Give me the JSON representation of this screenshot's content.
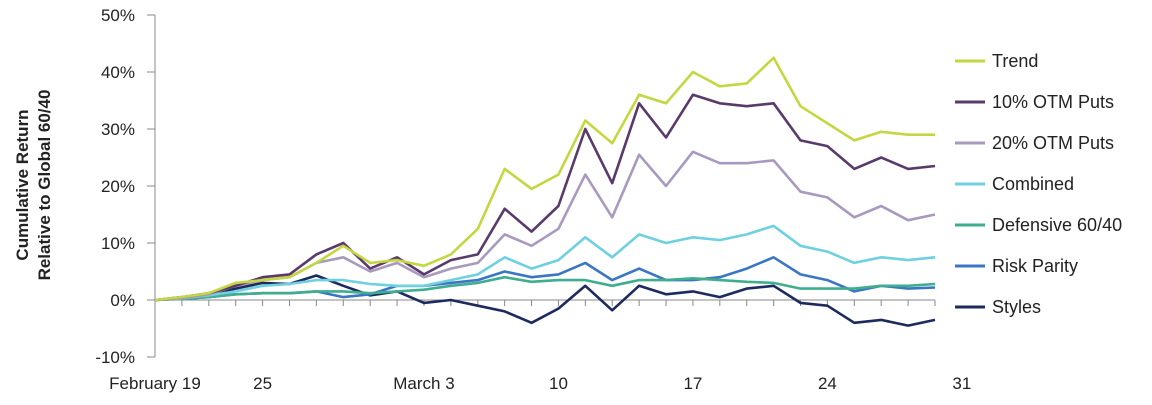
{
  "chart_data": {
    "type": "line",
    "ylabel_lines": [
      "Cumulative Return",
      "Relative to Global 60/40"
    ],
    "ylim": [
      -10,
      50
    ],
    "yticks": [
      -10,
      0,
      10,
      20,
      30,
      40,
      50
    ],
    "ytick_labels": [
      "-10%",
      "0%",
      "10%",
      "20%",
      "30%",
      "40%",
      "50%"
    ],
    "xticks": [
      {
        "index": 0,
        "label": "February 19"
      },
      {
        "index": 4,
        "label": "25"
      },
      {
        "index": 10,
        "label": "March 3"
      },
      {
        "index": 15,
        "label": "10"
      },
      {
        "index": 20,
        "label": "17"
      },
      {
        "index": 25,
        "label": "24"
      },
      {
        "index": 30,
        "label": "31"
      }
    ],
    "grid": false,
    "legend_position": "right",
    "series": [
      {
        "name": "Trend",
        "color": "#c5d641",
        "values": [
          0,
          0.5,
          1.2,
          3,
          3.5,
          4,
          6.5,
          9.5,
          6.5,
          7,
          6,
          8,
          12.5,
          23,
          19.5,
          22,
          31.5,
          27.5,
          36,
          34.5,
          40,
          37.5,
          38,
          42.5,
          34,
          31,
          28,
          29.5,
          29,
          29
        ]
      },
      {
        "name": "10% OTM Puts",
        "color": "#5a3a6a",
        "values": [
          0,
          0.5,
          1.2,
          2.5,
          4,
          4.5,
          8,
          10,
          5.5,
          7.5,
          4.5,
          7,
          8,
          16,
          12,
          16.5,
          30,
          20.5,
          34.5,
          28.5,
          36,
          34.5,
          34,
          34.5,
          28,
          27,
          23,
          25,
          23,
          23.5
        ]
      },
      {
        "name": "20% OTM Puts",
        "color": "#a999bf",
        "values": [
          0,
          0.3,
          1,
          2.5,
          3.5,
          4,
          6.5,
          7.5,
          5,
          6.5,
          4,
          5.5,
          6.5,
          11.5,
          9.5,
          12.5,
          22,
          14.5,
          25.5,
          20,
          26,
          24,
          24,
          24.5,
          19,
          18,
          14.5,
          16.5,
          14,
          15
        ]
      },
      {
        "name": "Combined",
        "color": "#6ed0e0",
        "values": [
          0,
          0.3,
          0.8,
          1.5,
          2.5,
          2.8,
          3.5,
          3.5,
          2.8,
          2.5,
          2.5,
          3.5,
          4.5,
          7.5,
          5.5,
          7,
          11,
          7.5,
          11.5,
          10,
          11,
          10.5,
          11.5,
          13,
          9.5,
          8.5,
          6.5,
          7.5,
          7,
          7.5
        ]
      },
      {
        "name": "Defensive 60/40",
        "color": "#3fae8e",
        "values": [
          0,
          0.2,
          0.5,
          1,
          1.2,
          1.2,
          1.5,
          1.5,
          1.2,
          1.5,
          1.8,
          2.5,
          3,
          4,
          3.2,
          3.5,
          3.5,
          2.5,
          3.5,
          3.5,
          3.8,
          3.5,
          3.2,
          3,
          2,
          2,
          2,
          2.5,
          2.5,
          2.8
        ]
      },
      {
        "name": "Risk Parity",
        "color": "#3a76c4",
        "values": [
          0,
          0.2,
          0.5,
          1,
          1.2,
          1.2,
          1.5,
          0.5,
          1,
          2.5,
          2.5,
          3,
          3.5,
          5,
          4,
          4.5,
          6.5,
          3.5,
          5.5,
          3.5,
          3.5,
          4,
          5.5,
          7.5,
          4.5,
          3.5,
          1.5,
          2.5,
          2,
          2.2
        ]
      },
      {
        "name": "Styles",
        "color": "#1c2a5e",
        "values": [
          0,
          0.3,
          1,
          2,
          3,
          2.8,
          4.3,
          2.5,
          0.8,
          1.5,
          -0.5,
          0,
          -1,
          -2,
          -4,
          -1.5,
          2.5,
          -1.8,
          2.5,
          1,
          1.5,
          0.5,
          2,
          2.5,
          -0.5,
          -1,
          -4,
          -3.5,
          -4.5,
          -3.5
        ]
      }
    ]
  }
}
